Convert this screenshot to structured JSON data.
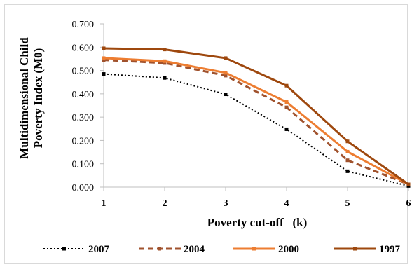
{
  "chart_data": {
    "type": "line",
    "title": "",
    "xlabel": "Poverty cut-off   (k)",
    "ylabel_lines": [
      "Multidimensional Child",
      "Poverty Index (M0)"
    ],
    "x": [
      1,
      2,
      3,
      4,
      5,
      6
    ],
    "x_tick_labels": [
      "1",
      "2",
      "3",
      "4",
      "5",
      "6"
    ],
    "y_tick_labels": [
      "0.000",
      "0.100",
      "0.200",
      "0.300",
      "0.400",
      "0.500",
      "0.600",
      "0.700"
    ],
    "ylim": [
      0,
      0.7
    ],
    "grid": false,
    "legend_position": "bottom",
    "series": [
      {
        "name": "2007",
        "values": [
          0.485,
          0.468,
          0.398,
          0.248,
          0.068,
          0.005
        ],
        "color": "#000000",
        "style": "dotted"
      },
      {
        "name": "2004",
        "values": [
          0.545,
          0.532,
          0.478,
          0.342,
          0.115,
          0.012
        ],
        "color": "#a0522d",
        "style": "dashed"
      },
      {
        "name": "2000",
        "values": [
          0.553,
          0.54,
          0.49,
          0.365,
          0.152,
          0.012
        ],
        "color": "#ed7d31",
        "style": "solid"
      },
      {
        "name": "1997",
        "values": [
          0.595,
          0.59,
          0.553,
          0.435,
          0.196,
          0.012
        ],
        "color": "#9e480e",
        "style": "solid"
      }
    ]
  }
}
